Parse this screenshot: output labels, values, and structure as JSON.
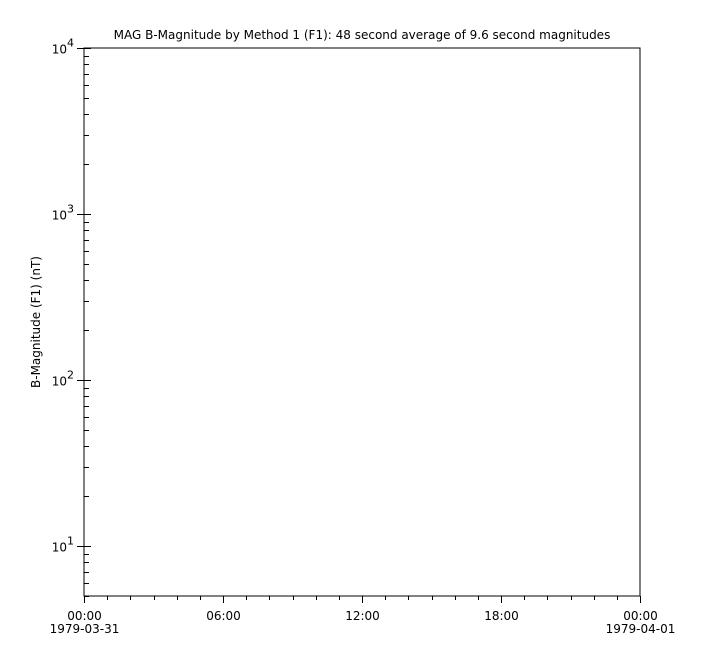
{
  "chart_data": {
    "type": "line",
    "title": "MAG  B-Magnitude by Method 1 (F1): 48 second average of 9.6 second magnitudes",
    "xlabel": "",
    "ylabel": "B-Magnitude (F1) (nT)",
    "yscale": "log",
    "ylim": [
      5,
      10000
    ],
    "xlim": [
      "1979-03-31T00:00",
      "1979-04-01T00:00"
    ],
    "y_ticks": [
      {
        "base": "10",
        "exp": "1",
        "value": 10
      },
      {
        "base": "10",
        "exp": "2",
        "value": 100
      },
      {
        "base": "10",
        "exp": "3",
        "value": 1000
      },
      {
        "base": "10",
        "exp": "4",
        "value": 10000
      }
    ],
    "x_ticks": [
      {
        "hours": 0,
        "time": "00:00",
        "date": "1979-03-31"
      },
      {
        "hours": 6,
        "time": "06:00",
        "date": ""
      },
      {
        "hours": 12,
        "time": "12:00",
        "date": ""
      },
      {
        "hours": 18,
        "time": "18:00",
        "date": ""
      },
      {
        "hours": 24,
        "time": "00:00",
        "date": "1979-04-01"
      }
    ],
    "series": [],
    "grid": false,
    "colors": {
      "axis": "#000000",
      "background": "#ffffff"
    }
  }
}
